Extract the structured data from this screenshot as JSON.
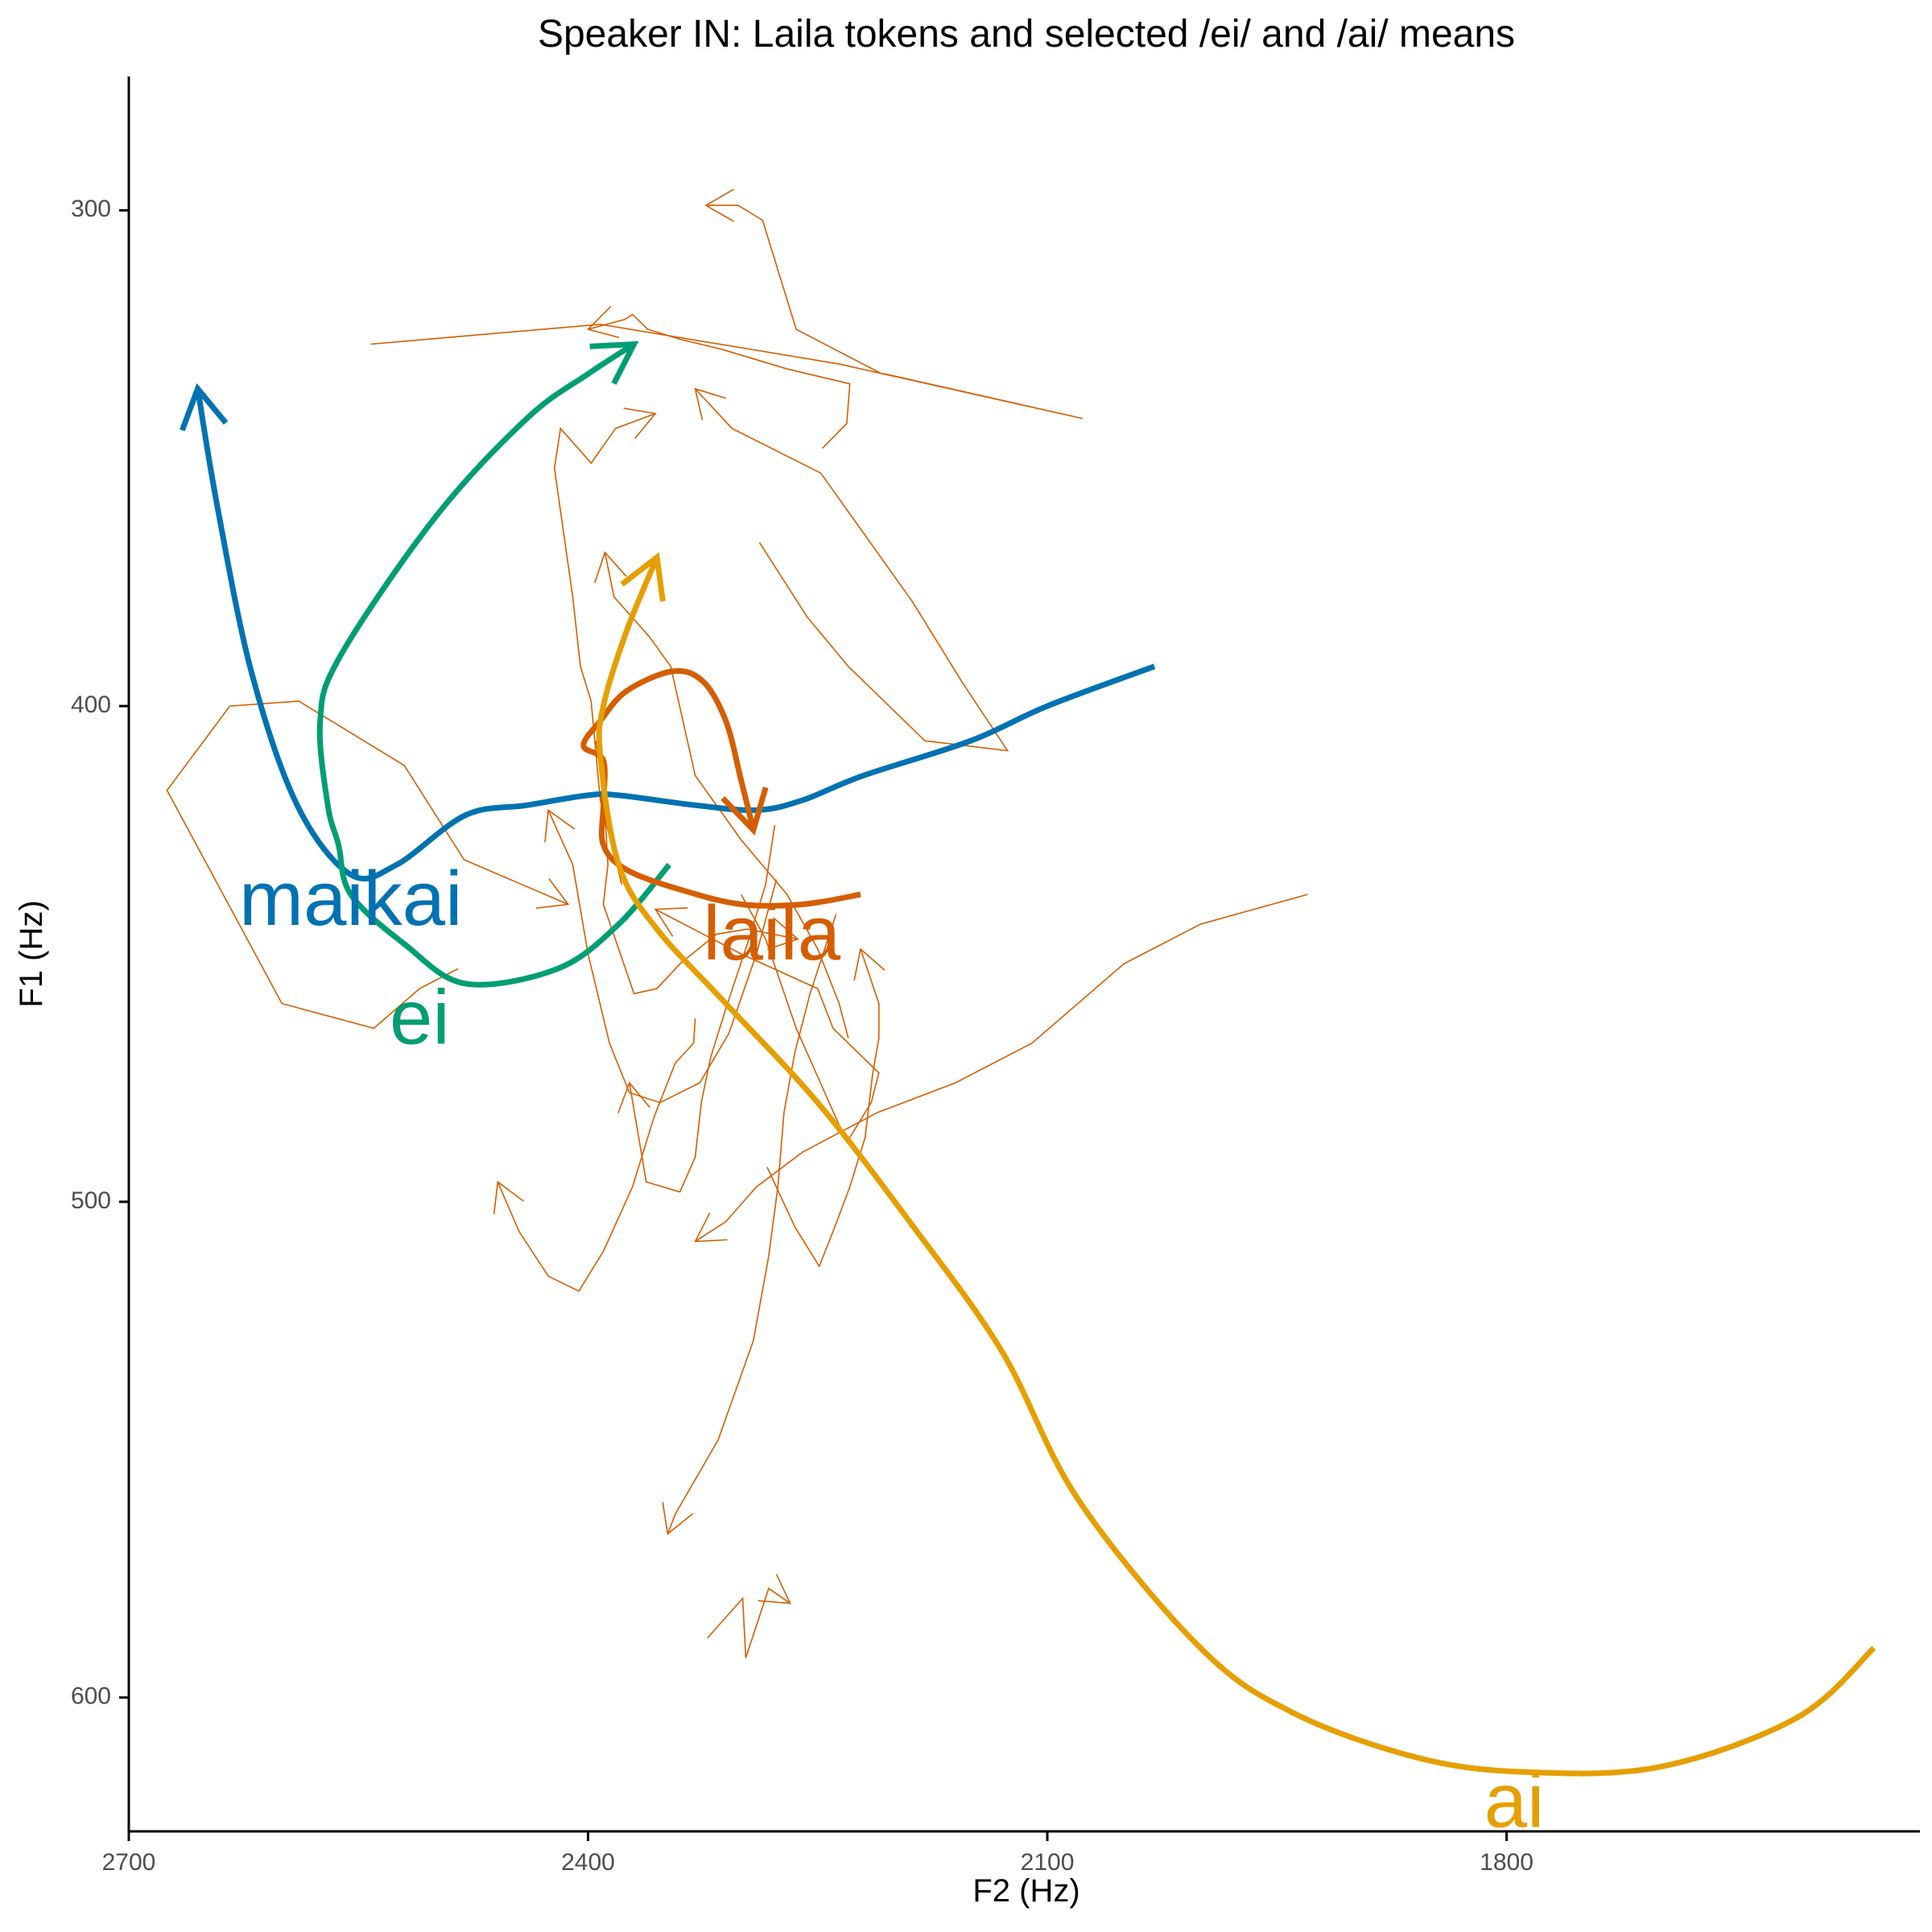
{
  "chart_data": {
    "type": "line",
    "title": "Speaker IN: Laila tokens and selected /ei/ and /ai/ means",
    "xlabel": "F2 (Hz)",
    "ylabel": "F1 (Hz)",
    "x_reversed": true,
    "y_reversed": true,
    "xlim": [
      2700,
      1530
    ],
    "ylim": [
      273,
      627
    ],
    "xticks": [
      2700,
      2400,
      2100,
      1800
    ],
    "yticks": [
      300,
      400,
      500,
      600
    ],
    "grid": false,
    "legend": "none",
    "colors": {
      "maikai": "#0072B2",
      "ei": "#009E73",
      "laila": "#D55E00",
      "ai": "#E69F00",
      "tokens": "#D55E00"
    },
    "series": [
      {
        "name": "maikai",
        "color": "#0072B2",
        "arrow": true,
        "points": [
          [
            2030,
            392
          ],
          [
            2100,
            400
          ],
          [
            2150,
            407
          ],
          [
            2220,
            414
          ],
          [
            2260,
            419
          ],
          [
            2290,
            421
          ],
          [
            2330,
            420
          ],
          [
            2380,
            418
          ],
          [
            2400,
            418
          ],
          [
            2440,
            420
          ],
          [
            2480,
            422
          ],
          [
            2525,
            432
          ],
          [
            2555,
            434
          ],
          [
            2590,
            420
          ],
          [
            2620,
            393
          ],
          [
            2642,
            360
          ],
          [
            2655,
            336
          ]
        ]
      },
      {
        "name": "ei",
        "color": "#009E73",
        "arrow": true,
        "points": [
          [
            2347,
            432
          ],
          [
            2380,
            444
          ],
          [
            2420,
            453
          ],
          [
            2480,
            456
          ],
          [
            2520,
            448
          ],
          [
            2555,
            438
          ],
          [
            2563,
            428
          ],
          [
            2570,
            420
          ],
          [
            2575,
            403
          ],
          [
            2562,
            390
          ],
          [
            2500,
            362
          ],
          [
            2440,
            342
          ],
          [
            2400,
            333
          ],
          [
            2370,
            327
          ]
        ]
      },
      {
        "name": "laila",
        "color": "#D55E00",
        "arrow": true,
        "points": [
          [
            2222,
            438
          ],
          [
            2260,
            440
          ],
          [
            2300,
            440
          ],
          [
            2340,
            437
          ],
          [
            2375,
            433
          ],
          [
            2390,
            428
          ],
          [
            2390,
            420
          ],
          [
            2390,
            411
          ],
          [
            2403,
            408
          ],
          [
            2392,
            403
          ],
          [
            2375,
            397
          ],
          [
            2345,
            393
          ],
          [
            2325,
            395
          ],
          [
            2310,
            403
          ],
          [
            2300,
            415
          ],
          [
            2292,
            425
          ]
        ]
      },
      {
        "name": "ai",
        "color": "#E69F00",
        "arrow": true,
        "points": [
          [
            1560,
            590
          ],
          [
            1610,
            604
          ],
          [
            1700,
            614
          ],
          [
            1790,
            615
          ],
          [
            1860,
            612
          ],
          [
            1940,
            603
          ],
          [
            2000,
            590
          ],
          [
            2080,
            560
          ],
          [
            2130,
            530
          ],
          [
            2190,
            504
          ],
          [
            2250,
            480
          ],
          [
            2310,
            460
          ],
          [
            2355,
            445
          ],
          [
            2380,
            432
          ],
          [
            2392,
            410
          ],
          [
            2390,
            400
          ],
          [
            2375,
            385
          ],
          [
            2355,
            370
          ]
        ]
      }
    ],
    "tokens": [
      [
        [
          2378,
          436
        ],
        [
          2392,
          419
        ],
        [
          2398,
          399
        ],
        [
          2405,
          392
        ],
        [
          2410,
          378
        ],
        [
          2422,
          352
        ],
        [
          2418,
          344
        ],
        [
          2398,
          351
        ],
        [
          2382,
          344
        ],
        [
          2356,
          341
        ]
      ],
      [
        [
          2485,
          453
        ],
        [
          2510,
          457
        ],
        [
          2540,
          465
        ],
        [
          2600,
          460
        ],
        [
          2675,
          417
        ],
        [
          2634,
          400
        ],
        [
          2589,
          399
        ],
        [
          2520,
          412
        ],
        [
          2481,
          431
        ],
        [
          2413,
          440
        ]
      ],
      [
        [
          2542,
          327
        ],
        [
          2392,
          323
        ],
        [
          2236,
          331
        ],
        [
          2077,
          342
        ],
        [
          2206,
          333
        ],
        [
          2208,
          333
        ],
        [
          2264,
          324
        ],
        [
          2286,
          302
        ],
        [
          2302,
          299
        ],
        [
          2323,
          299
        ]
      ],
      [
        [
          2288,
          367
        ],
        [
          2257,
          382
        ],
        [
          2230,
          392
        ],
        [
          2180,
          407
        ],
        [
          2126,
          409
        ],
        [
          2156,
          395
        ],
        [
          2188,
          379
        ],
        [
          2248,
          353
        ],
        [
          2306,
          344
        ],
        [
          2330,
          336
        ]
      ],
      [
        [
          2300,
          438
        ],
        [
          2284,
          447
        ],
        [
          2264,
          465
        ],
        [
          2231,
          488
        ],
        [
          2215,
          480
        ],
        [
          2210,
          474
        ],
        [
          2240,
          465
        ],
        [
          2250,
          457
        ],
        [
          2300,
          450
        ],
        [
          2356,
          441
        ]
      ],
      [
        [
          2230,
          467
        ],
        [
          2236,
          460
        ],
        [
          2250,
          449
        ],
        [
          2270,
          438
        ],
        [
          2300,
          427
        ],
        [
          2330,
          414
        ],
        [
          2346,
          392
        ],
        [
          2360,
          386
        ],
        [
          2383,
          378
        ],
        [
          2389,
          369
        ]
      ],
      [
        [
          2395,
          407
        ],
        [
          2390,
          416
        ],
        [
          2387,
          432
        ],
        [
          2390,
          440
        ],
        [
          2370,
          458
        ],
        [
          2355,
          457
        ],
        [
          2340,
          452
        ],
        [
          2316,
          446
        ],
        [
          2296,
          445
        ],
        [
          2263,
          447
        ]
      ],
      [
        [
          2330,
          463
        ],
        [
          2331,
          468
        ],
        [
          2343,
          472
        ],
        [
          2357,
          483
        ],
        [
          2371,
          497
        ],
        [
          2390,
          510
        ],
        [
          2406,
          518
        ],
        [
          2426,
          515
        ],
        [
          2445,
          506
        ],
        [
          2459,
          496
        ]
      ],
      [
        [
          2247,
          348
        ],
        [
          2231,
          343
        ],
        [
          2229,
          335
        ],
        [
          2270,
          332
        ],
        [
          2313,
          328
        ],
        [
          2340,
          326
        ],
        [
          2361,
          324
        ],
        [
          2371,
          321
        ],
        [
          2376,
          322
        ],
        [
          2400,
          324
        ]
      ],
      [
        [
          2277,
          435
        ],
        [
          2290,
          450
        ],
        [
          2308,
          466
        ],
        [
          2327,
          476
        ],
        [
          2353,
          480
        ],
        [
          2373,
          478
        ],
        [
          2386,
          468
        ],
        [
          2400,
          450
        ],
        [
          2410,
          432
        ],
        [
          2426,
          421
        ]
      ],
      [
        [
          2322,
          588
        ],
        [
          2299,
          580
        ],
        [
          2297,
          592
        ],
        [
          2282,
          578
        ],
        [
          2268,
          581
        ]
      ],
      [
        [
          2278,
          424
        ],
        [
          2284,
          436
        ],
        [
          2296,
          448
        ],
        [
          2310,
          461
        ],
        [
          2320,
          471
        ],
        [
          2326,
          480
        ],
        [
          2330,
          491
        ],
        [
          2340,
          498
        ],
        [
          2362,
          496
        ],
        [
          2373,
          476
        ]
      ],
      [
        [
          2238,
          442
        ],
        [
          2255,
          458
        ],
        [
          2265,
          470
        ],
        [
          2272,
          482
        ],
        [
          2276,
          497
        ],
        [
          2282,
          511
        ],
        [
          2292,
          528
        ],
        [
          2315,
          548
        ],
        [
          2343,
          563
        ],
        [
          2348,
          567
        ]
      ],
      [
        [
          1930,
          438
        ],
        [
          2000,
          444
        ],
        [
          2050,
          452
        ],
        [
          2110,
          468
        ],
        [
          2160,
          476
        ],
        [
          2211,
          482
        ],
        [
          2260,
          490
        ],
        [
          2290,
          497
        ],
        [
          2310,
          504
        ],
        [
          2330,
          508
        ]
      ],
      [
        [
          2283,
          493
        ],
        [
          2265,
          505
        ],
        [
          2249,
          513
        ],
        [
          2240,
          506
        ],
        [
          2229,
          497
        ],
        [
          2219,
          487
        ],
        [
          2214,
          474
        ],
        [
          2210,
          467
        ],
        [
          2210,
          460
        ],
        [
          2222,
          449
        ]
      ]
    ],
    "annotations": [
      {
        "text": "maikai",
        "x": 2555,
        "y": 440,
        "color": "#0072B2"
      },
      {
        "text": "ei",
        "x": 2510,
        "y": 464,
        "color": "#009E73"
      },
      {
        "text": "laila",
        "x": 2280,
        "y": 447,
        "color": "#D55E00"
      },
      {
        "text": "ai",
        "x": 1795,
        "y": 622,
        "color": "#E69F00"
      }
    ]
  }
}
